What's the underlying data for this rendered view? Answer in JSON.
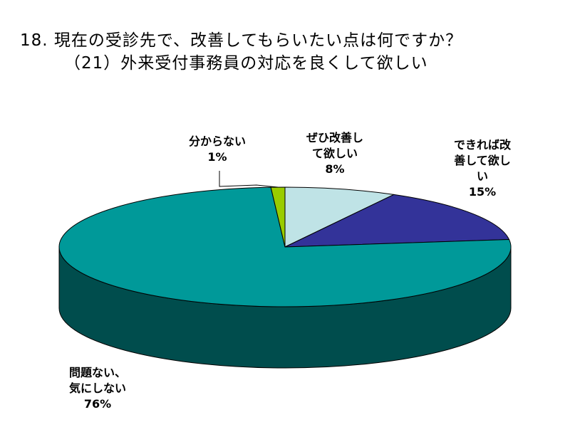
{
  "title": "18. 現在の受診先で、改善してもらいたい点は何ですか？",
  "subtitle": "（21）外来受付事務員の対応を良くして欲しい",
  "chart_data": {
    "type": "pie",
    "style": "3d",
    "slices": [
      {
        "label_lines": [
          "ぜひ改善し",
          "て欲しい"
        ],
        "value": 8,
        "pct_label": "8%",
        "color": "#BFE3E6",
        "side": "#86a3a6"
      },
      {
        "label_lines": [
          "できれば改",
          "善して欲し",
          "い"
        ],
        "value": 15,
        "pct_label": "15%",
        "color": "#333399",
        "side": "#1c1c66"
      },
      {
        "label_lines": [
          "問題ない、",
          "気にしない"
        ],
        "value": 76,
        "pct_label": "76%",
        "color": "#009999",
        "side": "#004d4d"
      },
      {
        "label_lines": [
          "分からない"
        ],
        "value": 1,
        "pct_label": "1%",
        "color": "#99CC00",
        "side": "#5f7f00"
      }
    ]
  }
}
